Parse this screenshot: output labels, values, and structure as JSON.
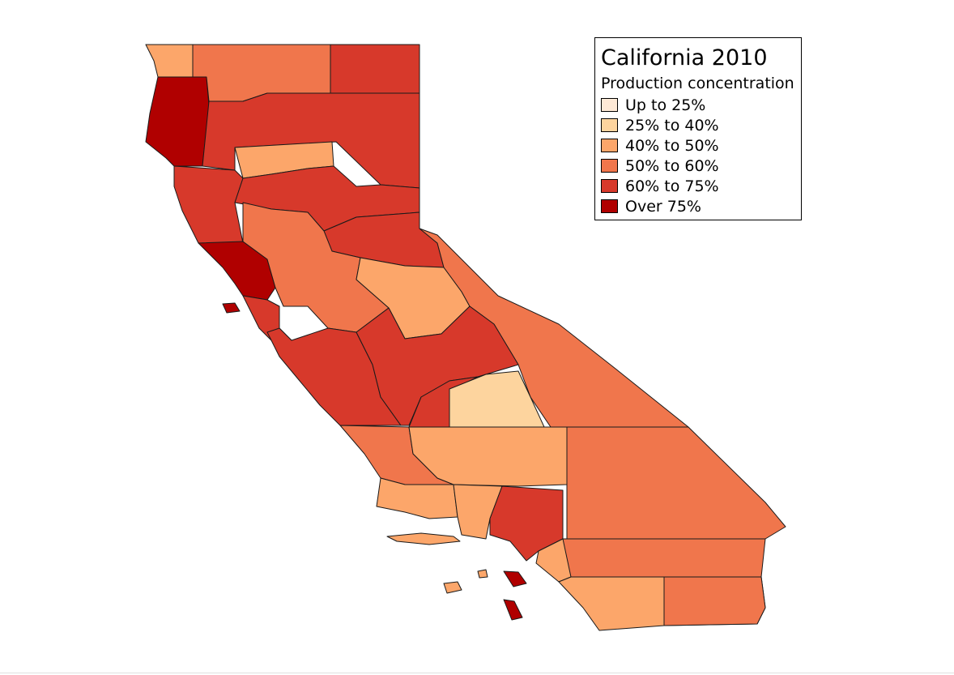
{
  "map": {
    "title": "California 2010",
    "legend": {
      "subtitle": "Production concentration",
      "classes": [
        {
          "label": "Up to 25%",
          "color": "#fee9d6"
        },
        {
          "label": "25% to 40%",
          "color": "#fdd49e"
        },
        {
          "label": "40% to 50%",
          "color": "#fca66a"
        },
        {
          "label": "50% to 60%",
          "color": "#f0764c"
        },
        {
          "label": "60% to 75%",
          "color": "#d7392b"
        },
        {
          "label": "Over 75%",
          "color": "#b00000"
        }
      ]
    },
    "regions": [
      {
        "id": "northwest-coast",
        "class": 5
      },
      {
        "id": "north-border-west",
        "class": 2
      },
      {
        "id": "north-border-mid",
        "class": 3
      },
      {
        "id": "northeast",
        "class": 4
      },
      {
        "id": "north-interior",
        "class": 4
      },
      {
        "id": "north-central",
        "class": 2
      },
      {
        "id": "coastal-north",
        "class": 4
      },
      {
        "id": "sacramento-valley",
        "class": 4
      },
      {
        "id": "sierra-north",
        "class": 4
      },
      {
        "id": "bay-area-core",
        "class": 5
      },
      {
        "id": "bay-area-south",
        "class": 4
      },
      {
        "id": "central-valley-north",
        "class": 3
      },
      {
        "id": "sierra-central",
        "class": 2
      },
      {
        "id": "eastern-sierra",
        "class": 3
      },
      {
        "id": "central-coast",
        "class": 4
      },
      {
        "id": "central-valley-south",
        "class": 4
      },
      {
        "id": "southern-sierra",
        "class": 4
      },
      {
        "id": "inyo-southwest",
        "class": 1
      },
      {
        "id": "kern-west",
        "class": 3
      },
      {
        "id": "central-coast-south",
        "class": 3
      },
      {
        "id": "kern",
        "class": 2
      },
      {
        "id": "santa-barbara",
        "class": 2
      },
      {
        "id": "ventura",
        "class": 2
      },
      {
        "id": "los-angeles",
        "class": 4
      },
      {
        "id": "san-bernardino",
        "class": 3
      },
      {
        "id": "inland-empire-south",
        "class": 3
      },
      {
        "id": "orange",
        "class": 2
      },
      {
        "id": "san-diego",
        "class": 2
      },
      {
        "id": "imperial",
        "class": 3
      },
      {
        "id": "channel-islands",
        "class": 2
      },
      {
        "id": "catalina",
        "class": 5
      },
      {
        "id": "farallon",
        "class": 5
      }
    ]
  }
}
